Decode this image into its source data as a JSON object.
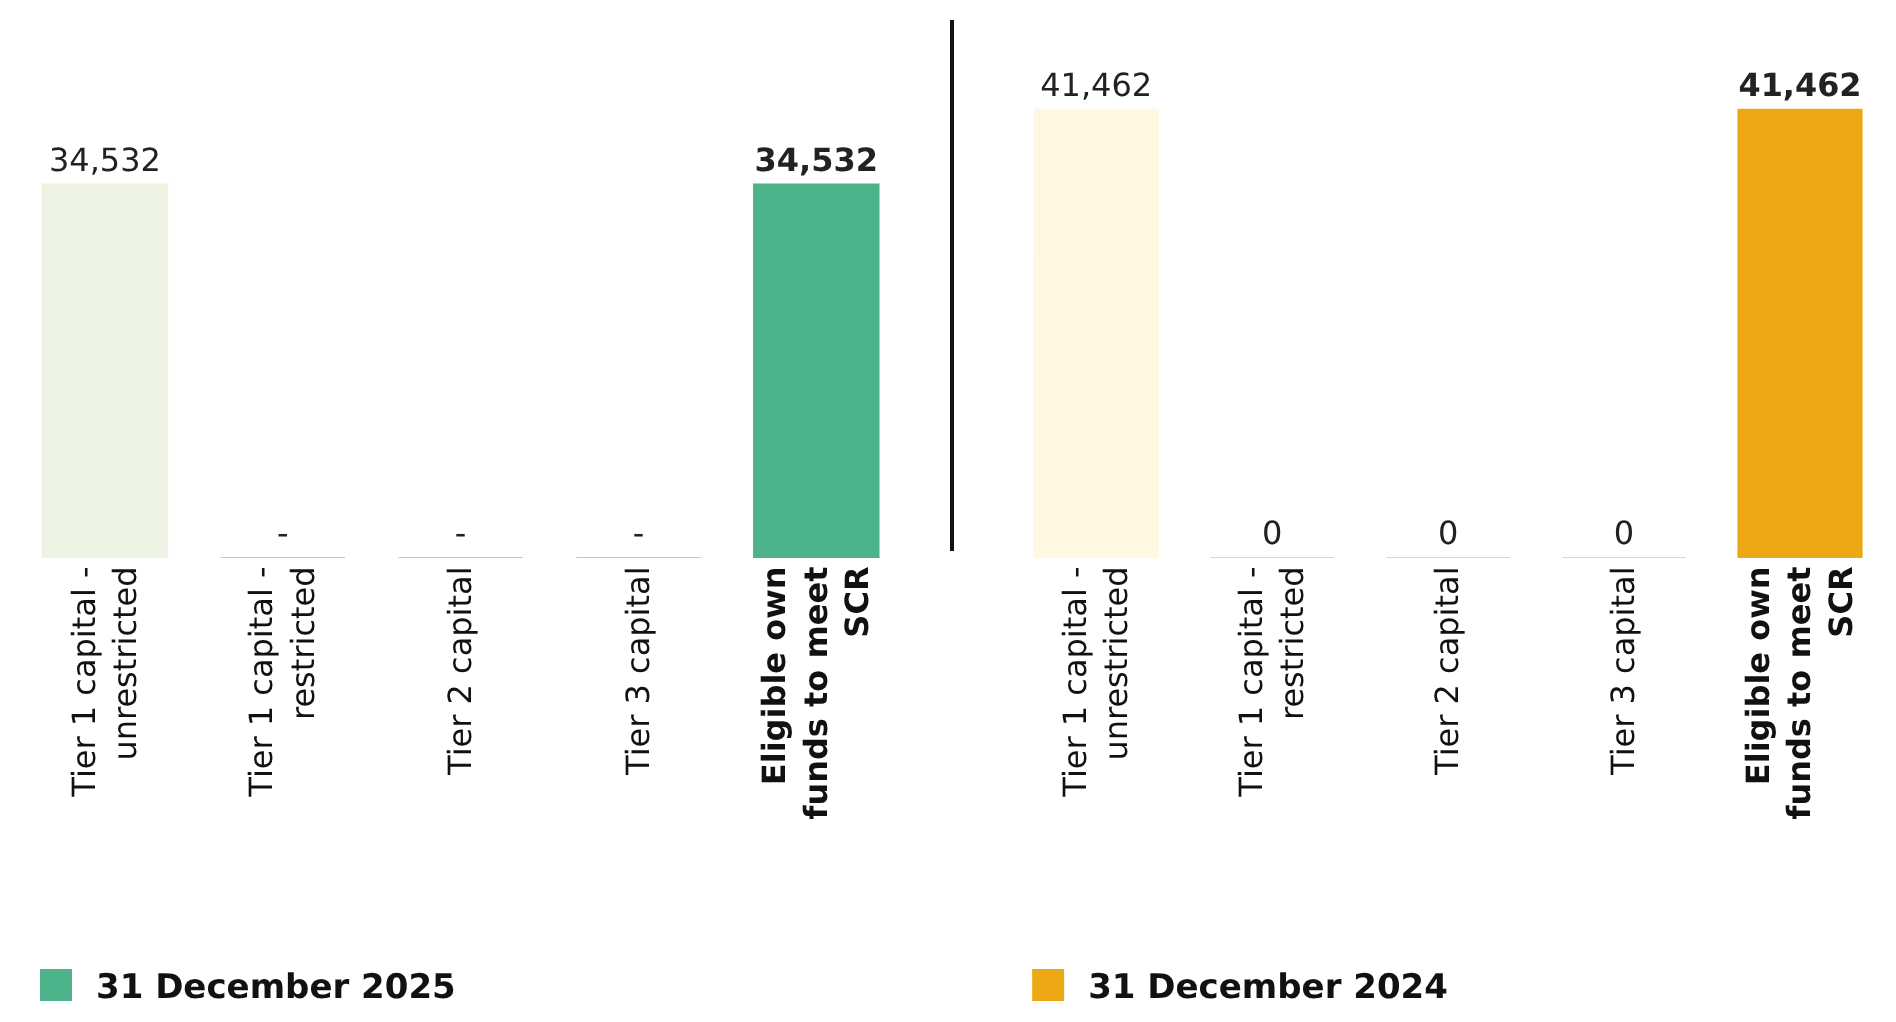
{
  "chart_data": [
    {
      "type": "bar",
      "categories": [
        "Tier 1 capital - unrestricted",
        "Tier 1 capital - restricted",
        "Tier 2 capital",
        "Tier 3 capital",
        "Eligible own funds to meet SCR"
      ],
      "tick_labels": "x",
      "legend": "bottom left",
      "series": [
        {
          "name": "31 December 2025",
          "color": "#4cb38a",
          "colors": [
            "#edf3e3",
            "#a8d8b5",
            "#a8d8b5",
            "#a8d8b5",
            "#4cb38a"
          ],
          "values": [
            34532,
            0,
            0,
            0,
            34532
          ],
          "value_labels": [
            "34,532",
            "-",
            "-",
            "-",
            "34,532"
          ]
        }
      ]
    },
    {
      "type": "bar",
      "categories": [
        "Tier 1 capital - unrestricted",
        "Tier 1 capital - restricted",
        "Tier 2 capital",
        "Tier 3 capital",
        "Eligible own funds to meet SCR"
      ],
      "tick_labels": "x",
      "legend": "bottom left",
      "series": [
        {
          "name": "31 December 2024",
          "color": "#eca815",
          "colors": [
            "#fff7e0",
            "#f7d27f",
            "#f7d27f",
            "#f7d27f",
            "#eca815"
          ],
          "values": [
            41462,
            0,
            0,
            0,
            41462
          ],
          "value_labels": [
            "41,462",
            "0",
            "0",
            "0",
            "41,462"
          ]
        }
      ]
    }
  ]
}
